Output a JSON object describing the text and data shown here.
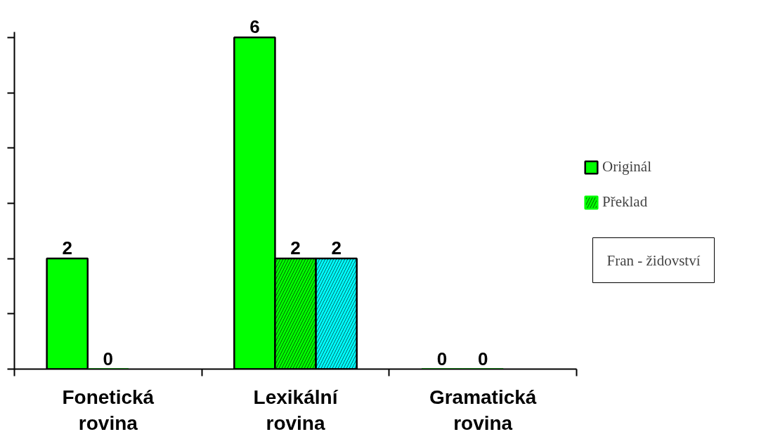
{
  "chart_data": {
    "type": "bar",
    "categories": [
      "Fonetická rovina",
      "Lexikální rovina",
      "Gramatická rovina"
    ],
    "series": [
      {
        "name": "Originál",
        "color": "#00ff00",
        "values": [
          2,
          6,
          0
        ]
      },
      {
        "name": "Překlad",
        "color": "#00ff00",
        "values": [
          0,
          2,
          0
        ]
      },
      {
        "color": "#00ffff",
        "values": [
          null,
          2,
          null
        ]
      }
    ],
    "ylim": [
      0,
      6.1
    ],
    "yticks": [
      {
        "value": 0,
        "label": null
      },
      {
        "value": 1,
        "label": null
      },
      {
        "value": 2,
        "label": null
      },
      {
        "value": 3,
        "label": null
      },
      {
        "value": 4,
        "label": null
      },
      {
        "value": 5,
        "label": null
      },
      {
        "value": 6,
        "label": null
      }
    ],
    "tick_labels": "x",
    "data_labels": true,
    "grid": false,
    "legend": "right",
    "annotations": [
      "Fran - židovství"
    ]
  }
}
